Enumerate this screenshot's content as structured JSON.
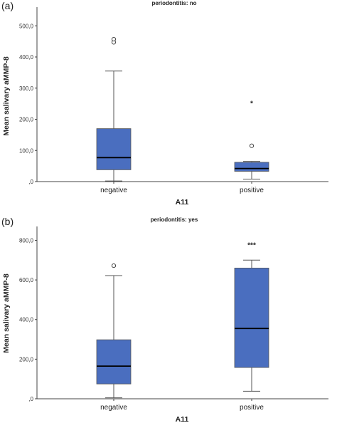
{
  "chart_data": [
    {
      "panel_label": "(a)",
      "type": "box",
      "title": "periodontitis: no",
      "xlabel": "A11",
      "ylabel": "Mean salivary aMMP-8",
      "ylim": [
        0,
        560
      ],
      "yticks": [
        0,
        100,
        200,
        300,
        400,
        500
      ],
      "ytick_labels": [
        ",0",
        "100,0",
        "200,0",
        "300,0",
        "400,0",
        "500,0"
      ],
      "box_color": "#4a6ebf",
      "categories": [
        "negative",
        "positive"
      ],
      "boxes": [
        {
          "category": "negative",
          "min": 2,
          "q1": 38,
          "median": 77,
          "q3": 170,
          "max": 355,
          "outliers": [
            447,
            457
          ],
          "extremes": [],
          "annotation": ""
        },
        {
          "category": "positive",
          "min": 8,
          "q1": 33,
          "median": 42,
          "q3": 62,
          "max": 65,
          "outliers": [
            115
          ],
          "extremes": [
            255
          ],
          "annotation": ""
        }
      ]
    },
    {
      "panel_label": "(b)",
      "type": "box",
      "title": "periodontitis: yes",
      "xlabel": "A11",
      "ylabel": "Mean salivary aMMP-8",
      "ylim": [
        0,
        870
      ],
      "yticks": [
        0,
        200,
        400,
        600,
        800
      ],
      "ytick_labels": [
        ",0",
        "200,0",
        "400,0",
        "600,0",
        "800,0"
      ],
      "box_color": "#4a6ebf",
      "categories": [
        "negative",
        "positive"
      ],
      "boxes": [
        {
          "category": "negative",
          "min": 5,
          "q1": 75,
          "median": 165,
          "q3": 298,
          "max": 622,
          "outliers": [
            672
          ],
          "extremes": [],
          "annotation": ""
        },
        {
          "category": "positive",
          "min": 38,
          "q1": 158,
          "median": 355,
          "q3": 660,
          "max": 700,
          "outliers": [],
          "extremes": [],
          "annotation": "***"
        }
      ]
    }
  ]
}
